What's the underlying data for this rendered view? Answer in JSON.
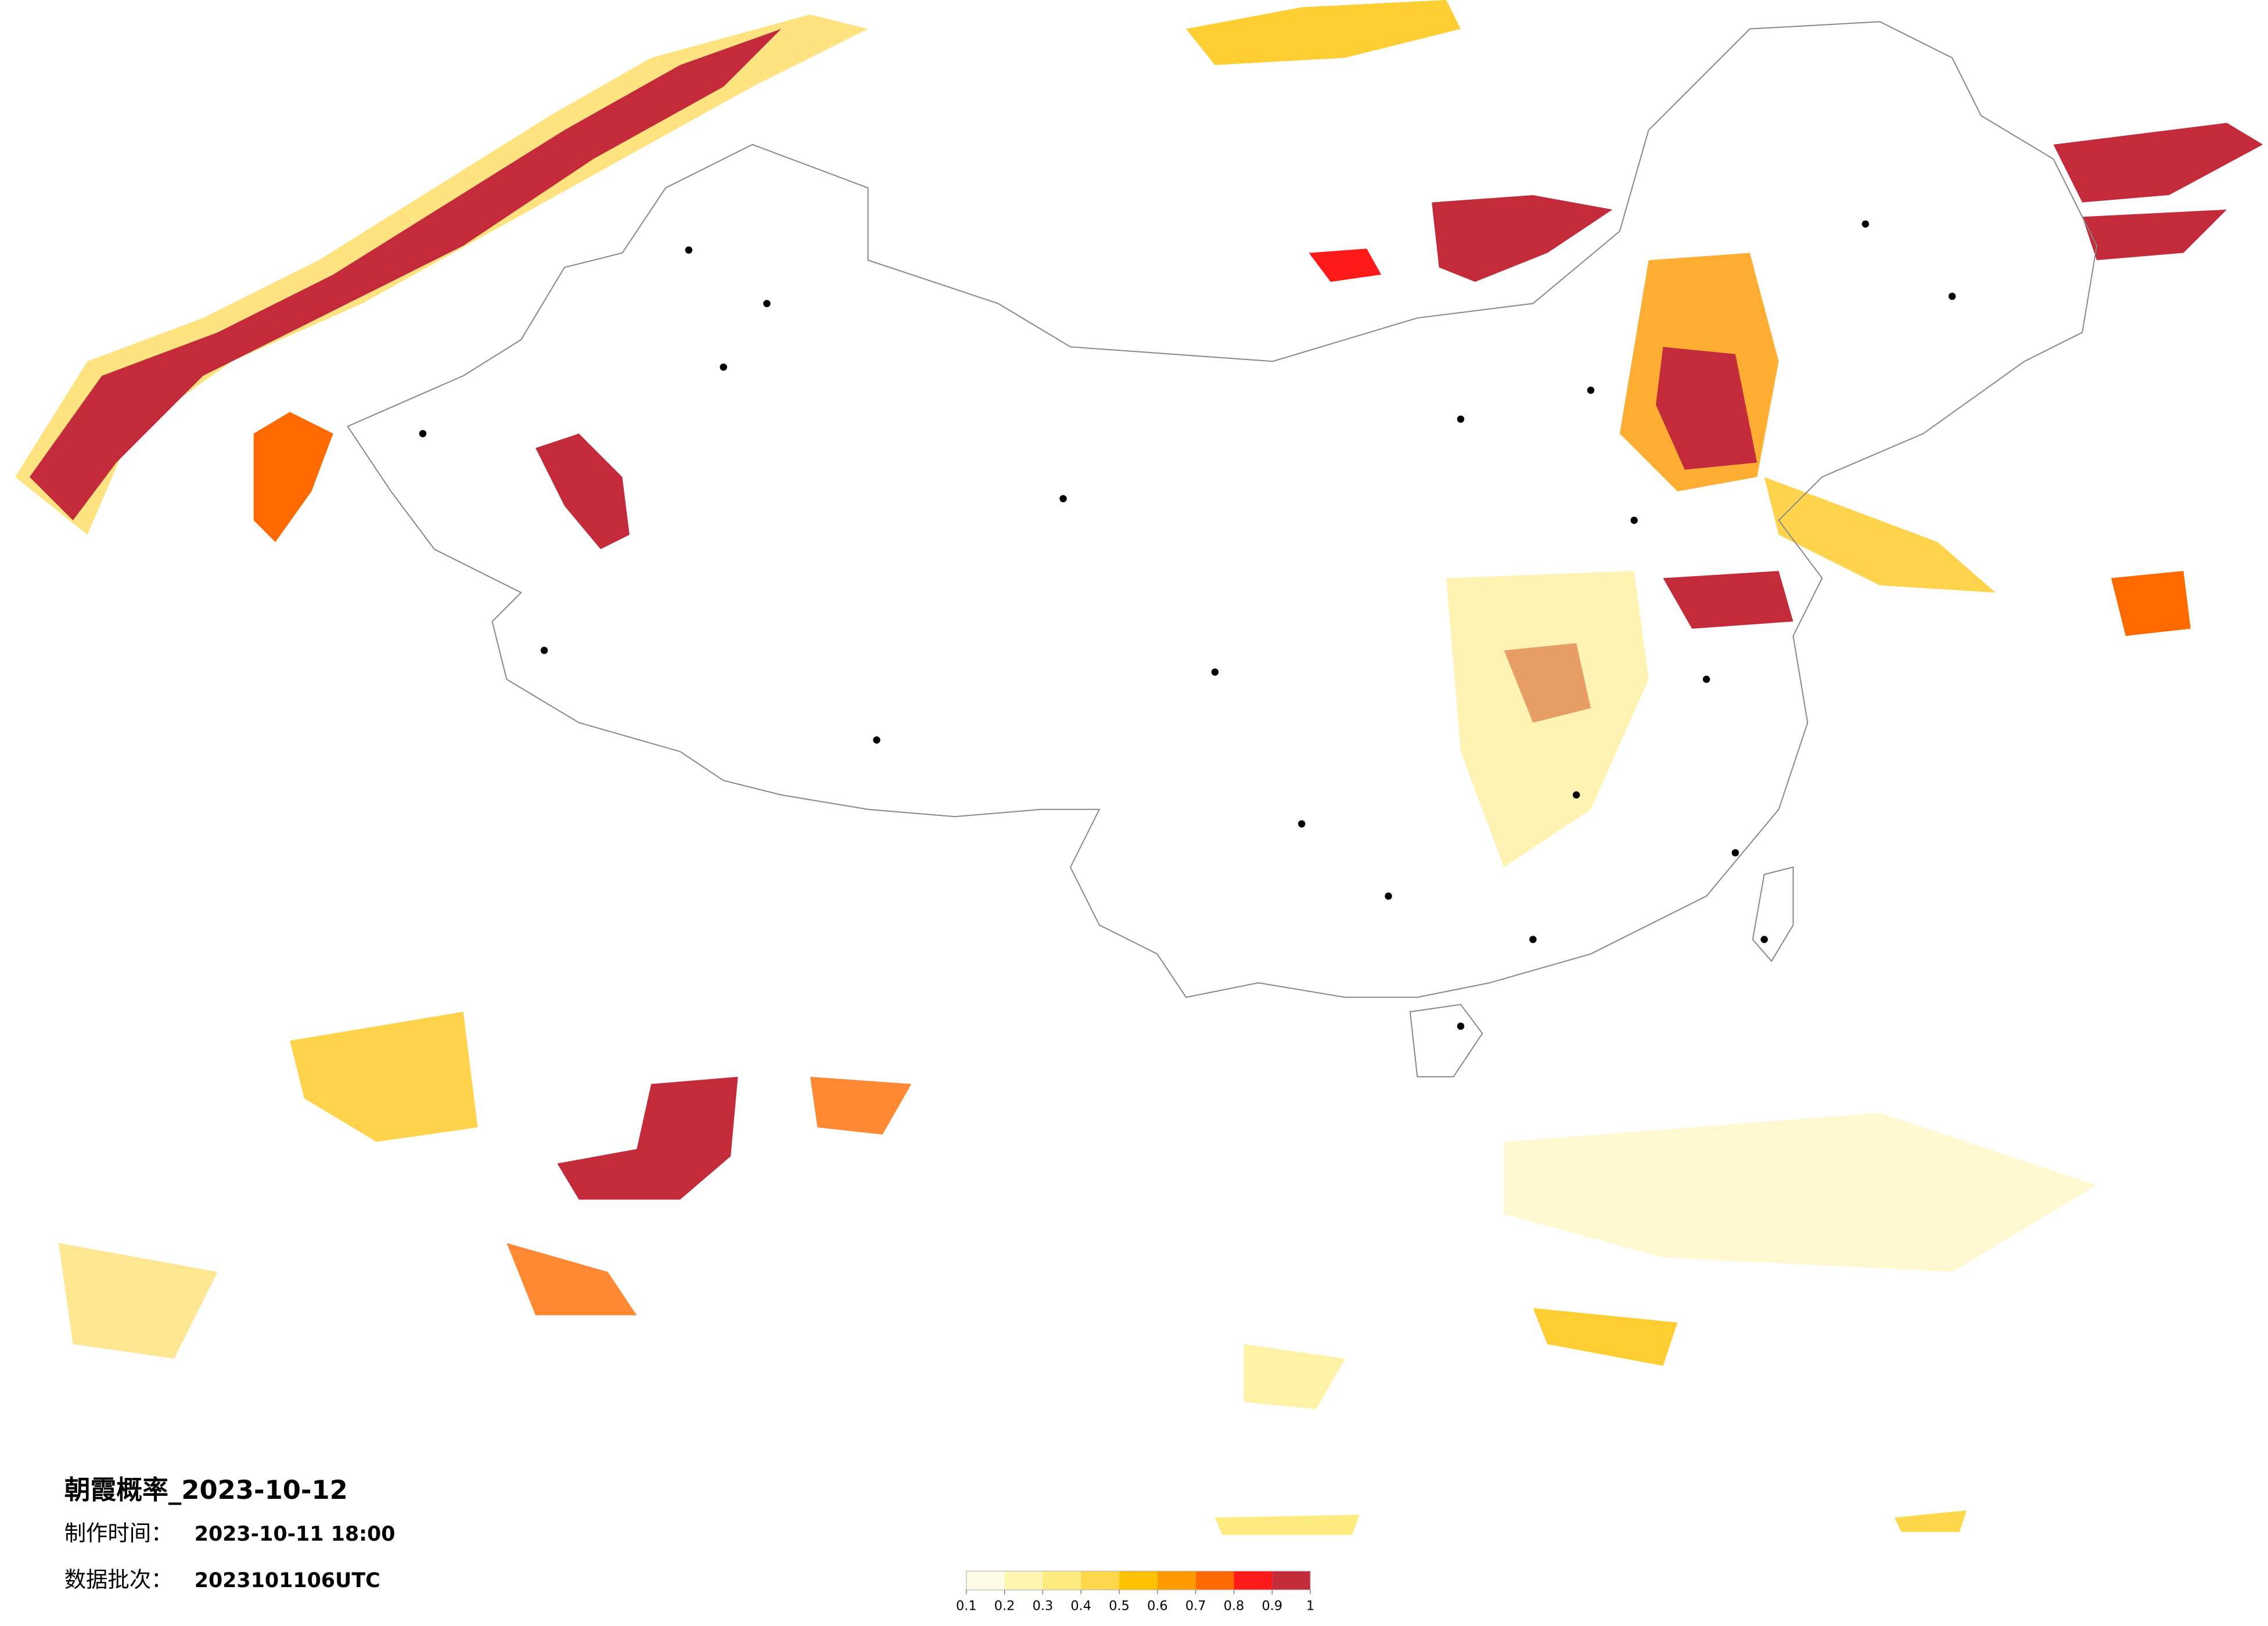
{
  "title": "朝霞概率_2023-10-12",
  "made_time": {
    "label": "制作时间：",
    "value": "2023-10-11 18:00"
  },
  "data_batch": {
    "label": "数据批次：",
    "value": "2023101106UTC"
  },
  "colorbar": {
    "ticks": [
      0.1,
      0.2,
      0.3,
      0.4,
      0.5,
      0.6,
      0.7,
      0.8,
      0.9,
      1
    ],
    "colors": [
      "#fffbe6",
      "#fff4b0",
      "#ffeb80",
      "#ffd74a",
      "#ffc200",
      "#ff9a00",
      "#ff6a00",
      "#ff1a1a",
      "#c42b3a"
    ]
  }
}
